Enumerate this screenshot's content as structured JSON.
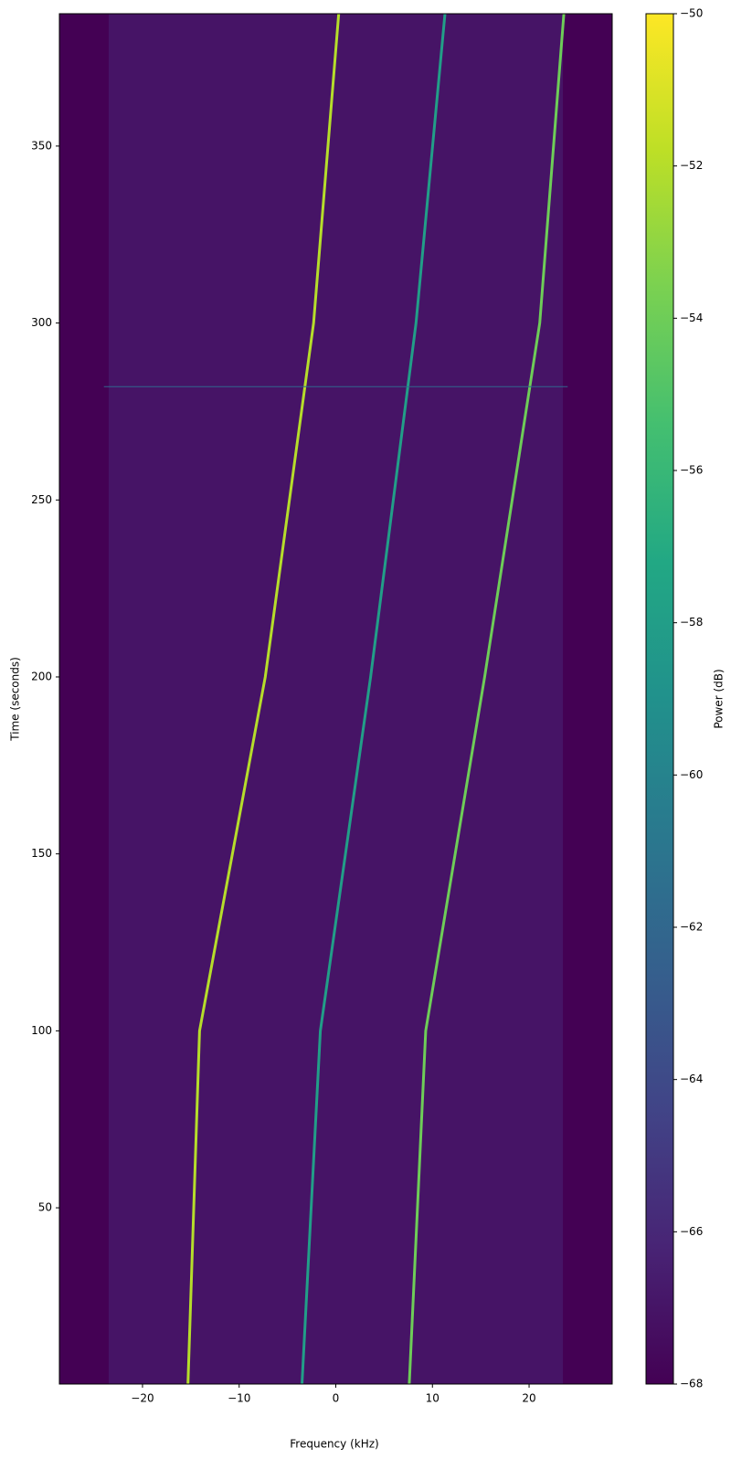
{
  "chart_data": {
    "type": "spectrogram",
    "xlabel": "Frequency (kHz)",
    "ylabel": "Time (seconds)",
    "colorbar_label": "Power (dB)",
    "colormap": "viridis",
    "xlim": [
      -28.6,
      28.6
    ],
    "xticks": [
      {
        "value": -20,
        "label": "−20"
      },
      {
        "value": -10,
        "label": "−10"
      },
      0,
      10,
      20
    ],
    "ylim": [
      0.2,
      387.4
    ],
    "yticks": [
      50,
      100,
      150,
      200,
      250,
      300,
      350
    ],
    "clim": [
      -68,
      -50
    ],
    "cticks": [
      {
        "value": -68,
        "label": "−68"
      },
      {
        "value": -66,
        "label": "−66"
      },
      {
        "value": -64,
        "label": "−64"
      },
      {
        "value": -62,
        "label": "−62"
      },
      {
        "value": -60,
        "label": "−60"
      },
      {
        "value": -58,
        "label": "−58"
      },
      {
        "value": -56,
        "label": "−56"
      },
      {
        "value": -54,
        "label": "−54"
      },
      {
        "value": -52,
        "label": "−52"
      },
      {
        "value": -50,
        "label": "−50"
      }
    ],
    "band": {
      "x": [
        -23.5,
        23.5
      ],
      "level": -67
    },
    "traces": [
      {
        "level": -52,
        "x": [
          -15.3,
          -14.1,
          -7.3,
          -2.3,
          0.3
        ],
        "y": [
          0.2,
          100,
          200,
          300,
          387.4
        ]
      },
      {
        "level": -58,
        "x": [
          -3.5,
          -1.6,
          3.6,
          8.3,
          11.3
        ],
        "y": [
          0.2,
          100,
          200,
          300,
          387.4
        ]
      },
      {
        "level": -54,
        "x": [
          7.6,
          9.3,
          15.4,
          21.1,
          23.6
        ],
        "y": [
          0.2,
          100,
          200,
          300,
          387.4
        ]
      },
      {
        "level": -62,
        "x": [
          -24,
          24
        ],
        "y": [
          282,
          282
        ]
      }
    ]
  }
}
